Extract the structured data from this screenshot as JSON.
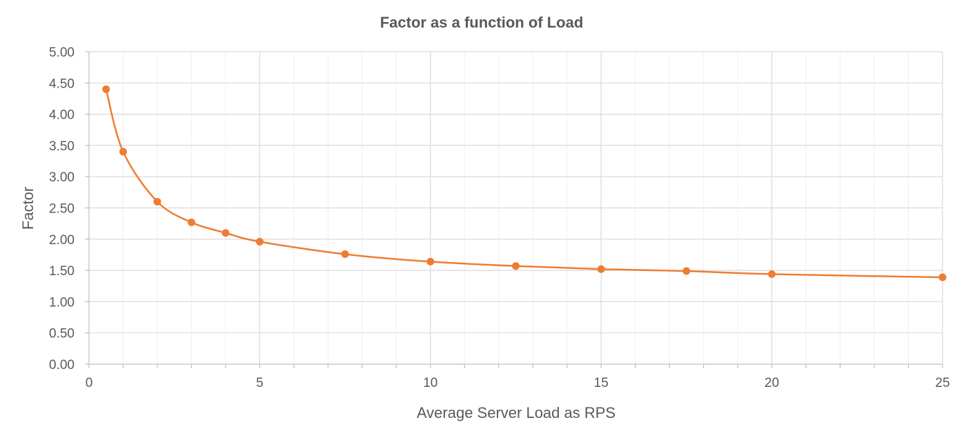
{
  "chart_data": {
    "type": "scatter",
    "title": "Factor as a function of Load",
    "xlabel": "Average Server Load as RPS",
    "ylabel": "Factor",
    "xlim": [
      0,
      25
    ],
    "ylim": [
      0,
      5
    ],
    "x_ticks": [
      0,
      5,
      10,
      15,
      20,
      25
    ],
    "y_ticks": [
      0,
      0.5,
      1,
      1.5,
      2,
      2.5,
      3,
      3.5,
      4,
      4.5,
      5
    ],
    "x_tick_labels": [
      "0",
      "5",
      "10",
      "15",
      "20",
      "25"
    ],
    "y_tick_labels": [
      "0.00",
      "0.50",
      "1.00",
      "1.50",
      "2.00",
      "2.50",
      "3.00",
      "3.50",
      "4.00",
      "4.50",
      "5.00"
    ],
    "x_minor_step": 1,
    "grid": true,
    "smooth_line": true,
    "legend": "none",
    "series": [
      {
        "color": "#ed7d31",
        "x": [
          0.5,
          1,
          2,
          3,
          4,
          5,
          7.5,
          10,
          12.5,
          15,
          17.5,
          20,
          25
        ],
        "y": [
          4.4,
          3.4,
          2.6,
          2.27,
          2.1,
          1.96,
          1.76,
          1.64,
          1.57,
          1.52,
          1.49,
          1.44,
          1.39
        ]
      }
    ]
  }
}
